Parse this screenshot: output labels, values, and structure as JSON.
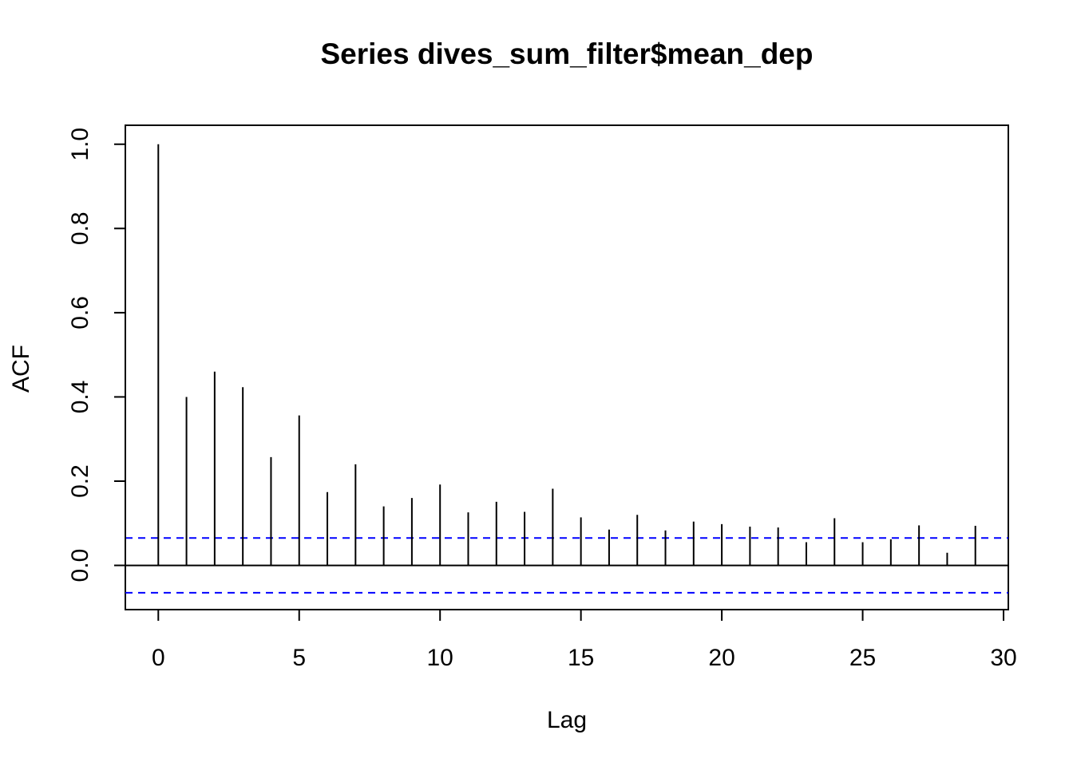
{
  "chart_data": {
    "type": "bar",
    "title": "Series  dives_sum_filter$mean_dep",
    "xlabel": "Lag",
    "ylabel": "ACF",
    "xlim": [
      -1.17,
      30.17
    ],
    "ylim": [
      -0.105,
      1.045
    ],
    "xticks": [
      0,
      5,
      10,
      15,
      20,
      25,
      30
    ],
    "yticks": [
      0.0,
      0.2,
      0.4,
      0.6,
      0.8,
      1.0
    ],
    "ytick_labels": [
      "0.0",
      "0.2",
      "0.4",
      "0.6",
      "0.8",
      "1.0"
    ],
    "lags": [
      0,
      1,
      2,
      3,
      4,
      5,
      6,
      7,
      8,
      9,
      10,
      11,
      12,
      13,
      14,
      15,
      16,
      17,
      18,
      19,
      20,
      21,
      22,
      23,
      24,
      25,
      26,
      27,
      28,
      29
    ],
    "values": [
      1.0,
      0.4,
      0.46,
      0.423,
      0.257,
      0.356,
      0.174,
      0.24,
      0.14,
      0.16,
      0.192,
      0.126,
      0.151,
      0.127,
      0.182,
      0.114,
      0.085,
      0.12,
      0.083,
      0.104,
      0.098,
      0.092,
      0.09,
      0.055,
      0.112,
      0.055,
      0.062,
      0.095,
      0.03,
      0.094
    ],
    "conf_bounds": [
      0.065,
      -0.065
    ],
    "colors": {
      "bars": "#000000",
      "conf_lines": "#0000ff",
      "zero_line": "#000000"
    },
    "grid": false,
    "legend": "none"
  }
}
